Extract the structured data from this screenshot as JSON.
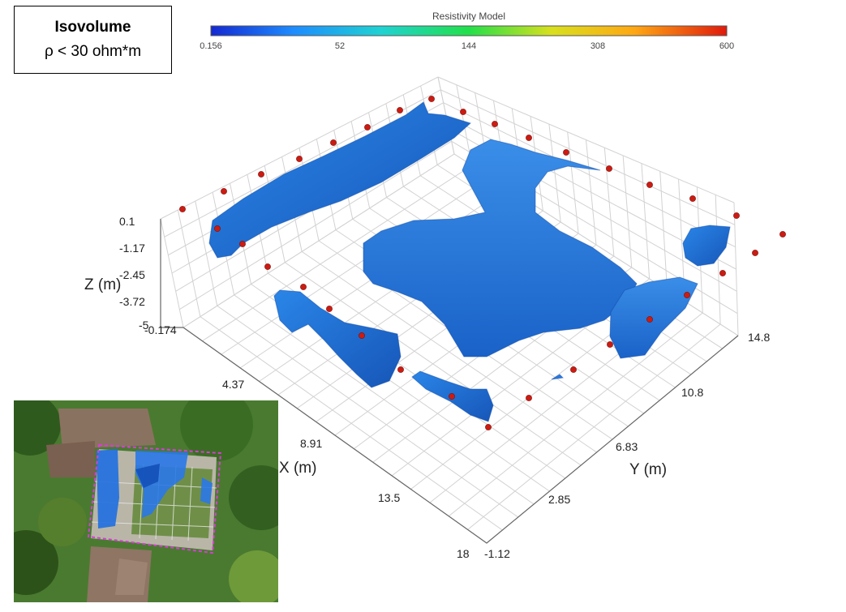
{
  "title_box": {
    "line1": "Isovolume",
    "line2": "ρ < 30 ohm*m"
  },
  "chart_data": {
    "type": "isosurface-3d",
    "colorbar": {
      "title": "Resistivity Model",
      "ticks": [
        "0.156",
        "52",
        "144",
        "308",
        "600"
      ],
      "colors": [
        "#1428d2",
        "#1e8cff",
        "#20d2d2",
        "#22e04a",
        "#d8e01e",
        "#ffa814",
        "#e01a0c"
      ]
    },
    "isovolume_threshold": "ρ < 30 ohm*m",
    "axes": {
      "x": {
        "label": "X (m)",
        "ticks": [
          "-0.174",
          "4.37",
          "8.91",
          "13.5",
          "18"
        ]
      },
      "y": {
        "label": "Y (m)",
        "ticks": [
          "-1.12",
          "2.85",
          "6.83",
          "10.8",
          "14.8"
        ]
      },
      "z": {
        "label": "Z (m)",
        "ticks": [
          "0.1",
          "-1.17",
          "-2.45",
          "-3.72",
          "-5"
        ]
      }
    },
    "grid": true,
    "surface_color": "#1f72d8",
    "electrode_color": "#cc1b12"
  },
  "colors": {
    "background": "#ffffff",
    "grid_line": "#d2d2d2",
    "photo_outline": "#d83cd8"
  }
}
